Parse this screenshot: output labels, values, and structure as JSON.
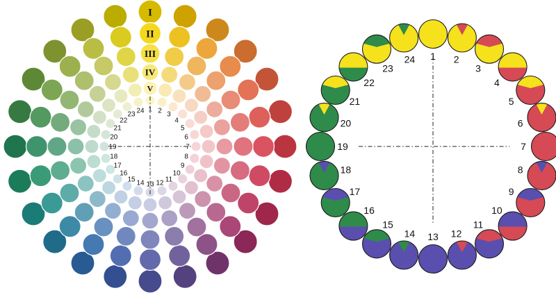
{
  "left_wheel": {
    "hue_numbers": [
      "1",
      "2",
      "3",
      "4",
      "5",
      "6",
      "7",
      "8",
      "9",
      "10",
      "11",
      "12",
      "13",
      "14",
      "15",
      "16",
      "17",
      "18",
      "19",
      "20",
      "21",
      "22",
      "23",
      "24"
    ],
    "tone_labels": [
      "I",
      "II",
      "III",
      "IV",
      "V"
    ],
    "hue_colors": [
      "#f2d300",
      "#eab800",
      "#e99a20",
      "#e57c35",
      "#df5f40",
      "#d94a45",
      "#d43c4a",
      "#c8324e",
      "#b52c55",
      "#9e2e63",
      "#7e3a78",
      "#5e4b8e",
      "#4f55a0",
      "#3a5aa6",
      "#2d66a7",
      "#237a9a",
      "#1f8c86",
      "#1f8d66",
      "#238559",
      "#3d8b4a",
      "#6a9a3c",
      "#8fa636",
      "#b0b42a",
      "#d4c400"
    ],
    "tone_lightness_mix": [
      0.0,
      0.12,
      0.28,
      0.48,
      0.7
    ],
    "tone_dark_mix": [
      0.12,
      0.0,
      0.0,
      0.0,
      0.0
    ]
  },
  "right_wheel": {
    "hue_numbers": [
      "1",
      "2",
      "3",
      "4",
      "5",
      "6",
      "7",
      "8",
      "9",
      "10",
      "11",
      "12",
      "13",
      "14",
      "15",
      "16",
      "17",
      "18",
      "19",
      "20",
      "21",
      "22",
      "23",
      "24"
    ],
    "primary_colors": {
      "yellow": "#f5e21c",
      "red": "#d54a55",
      "blue": "#5a4fae",
      "green": "#2e8b4a"
    },
    "segments": [
      {
        "base": "yellow",
        "accent": "",
        "level": 0
      },
      {
        "base": "yellow",
        "accent": "red",
        "level": 1
      },
      {
        "base": "yellow",
        "accent": "red",
        "level": 2
      },
      {
        "base": "red",
        "accent": "yellow",
        "level": 3
      },
      {
        "base": "red",
        "accent": "yellow",
        "level": 2
      },
      {
        "base": "red",
        "accent": "yellow",
        "level": 1
      },
      {
        "base": "red",
        "accent": "",
        "level": 0
      },
      {
        "base": "red",
        "accent": "blue",
        "level": 1
      },
      {
        "base": "red",
        "accent": "blue",
        "level": 2
      },
      {
        "base": "red",
        "accent": "blue",
        "level": 3
      },
      {
        "base": "blue",
        "accent": "red",
        "level": 2
      },
      {
        "base": "blue",
        "accent": "red",
        "level": 1
      },
      {
        "base": "blue",
        "accent": "",
        "level": 0
      },
      {
        "base": "blue",
        "accent": "green",
        "level": 1
      },
      {
        "base": "blue",
        "accent": "green",
        "level": 2
      },
      {
        "base": "blue",
        "accent": "green",
        "level": 3
      },
      {
        "base": "green",
        "accent": "blue",
        "level": 2
      },
      {
        "base": "green",
        "accent": "blue",
        "level": 1
      },
      {
        "base": "green",
        "accent": "",
        "level": 0
      },
      {
        "base": "green",
        "accent": "yellow",
        "level": 1
      },
      {
        "base": "green",
        "accent": "yellow",
        "level": 2
      },
      {
        "base": "green",
        "accent": "yellow",
        "level": 3
      },
      {
        "base": "yellow",
        "accent": "green",
        "level": 2
      },
      {
        "base": "yellow",
        "accent": "green",
        "level": 1
      }
    ]
  }
}
